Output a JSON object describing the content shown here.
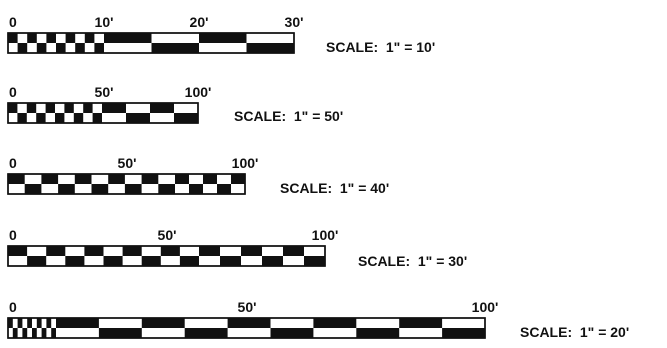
{
  "colors": {
    "ink": "#111111",
    "paper": "#ffffff"
  },
  "scales": [
    {
      "labels": [
        "0",
        "10'",
        "20'",
        "30'"
      ],
      "caption": "SCALE:  1\" = 10'",
      "fine_divisions": 10,
      "coarse_divisions": 4
    },
    {
      "labels": [
        "0",
        "50'",
        "100'"
      ],
      "caption": "SCALE:  1\" = 50'",
      "fine_divisions": 10,
      "coarse_divisions": 4
    },
    {
      "labels": [
        "0",
        "50'",
        "100'"
      ],
      "caption": "SCALE:  1\" = 40'",
      "fine_divisions": 10,
      "coarse_divisions": 5
    },
    {
      "labels": [
        "0",
        "50'",
        "100'"
      ],
      "caption": "SCALE:  1\" = 30'",
      "fine_divisions": 10,
      "coarse_divisions": 6
    },
    {
      "labels": [
        "0",
        "50'",
        "100'"
      ],
      "caption": "SCALE:  1\" = 20'",
      "fine_divisions": 10,
      "coarse_divisions": 10
    }
  ]
}
